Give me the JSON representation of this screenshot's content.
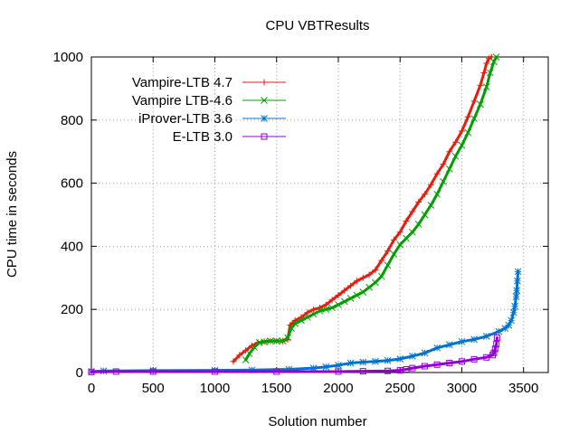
{
  "chart_data": {
    "type": "line",
    "title": "CPU VBTResults",
    "xlabel": "Solution number",
    "ylabel": "CPU time in seconds",
    "xlim": [
      0,
      3700
    ],
    "ylim": [
      0,
      1000
    ],
    "xticks": [
      0,
      500,
      1000,
      1500,
      2000,
      2500,
      3000,
      3500
    ],
    "yticks": [
      0,
      200,
      400,
      600,
      800,
      1000
    ],
    "grid": true,
    "legend_position": "top-left",
    "series": [
      {
        "name": "Vampire-LTB 4.7",
        "color": "#e51e10",
        "marker": "plus",
        "x": [
          1150,
          1200,
          1250,
          1300,
          1350,
          1400,
          1450,
          1500,
          1550,
          1590,
          1610,
          1650,
          1700,
          1750,
          1800,
          1850,
          1900,
          1950,
          2000,
          2050,
          2100,
          2150,
          2200,
          2250,
          2300,
          2350,
          2400,
          2450,
          2500,
          2550,
          2600,
          2650,
          2700,
          2750,
          2800,
          2850,
          2900,
          2950,
          3000,
          3050,
          3100,
          3150,
          3180,
          3200,
          3220,
          3240
        ],
        "y": [
          35,
          55,
          70,
          85,
          95,
          98,
          100,
          100,
          100,
          105,
          150,
          165,
          175,
          190,
          200,
          205,
          215,
          230,
          245,
          260,
          275,
          290,
          300,
          310,
          325,
          355,
          385,
          420,
          445,
          480,
          510,
          540,
          565,
          595,
          630,
          660,
          700,
          730,
          765,
          810,
          860,
          910,
          950,
          980,
          995,
          1000
        ]
      },
      {
        "name": "Vampire LTB-4.6",
        "color": "#00a000",
        "marker": "x",
        "x": [
          1250,
          1280,
          1320,
          1360,
          1400,
          1450,
          1500,
          1550,
          1590,
          1620,
          1650,
          1700,
          1750,
          1800,
          1850,
          1900,
          1950,
          2000,
          2050,
          2100,
          2150,
          2200,
          2250,
          2300,
          2350,
          2400,
          2450,
          2500,
          2550,
          2600,
          2650,
          2700,
          2750,
          2800,
          2850,
          2900,
          2950,
          3000,
          3050,
          3100,
          3150,
          3200,
          3230,
          3260,
          3280
        ],
        "y": [
          40,
          60,
          80,
          95,
          97,
          100,
          100,
          100,
          110,
          140,
          155,
          165,
          175,
          185,
          195,
          200,
          205,
          215,
          225,
          235,
          245,
          255,
          270,
          285,
          305,
          340,
          375,
          405,
          425,
          445,
          470,
          500,
          530,
          565,
          605,
          645,
          685,
          720,
          760,
          805,
          850,
          905,
          950,
          985,
          1000
        ]
      },
      {
        "name": "iProver-LTB 3.6",
        "color": "#0072d0",
        "marker": "star",
        "x": [
          0,
          100,
          500,
          1000,
          1300,
          1600,
          1800,
          1900,
          2000,
          2100,
          2200,
          2300,
          2400,
          2500,
          2600,
          2700,
          2800,
          2900,
          3000,
          3100,
          3200,
          3300,
          3350,
          3380,
          3400,
          3420,
          3430,
          3440,
          3445,
          3450,
          3455
        ],
        "y": [
          3,
          5,
          6,
          7,
          8,
          10,
          14,
          18,
          23,
          30,
          33,
          35,
          38,
          43,
          52,
          62,
          78,
          88,
          98,
          105,
          115,
          130,
          140,
          150,
          165,
          190,
          210,
          240,
          260,
          290,
          320
        ]
      },
      {
        "name": "E-LTB 3.0",
        "color": "#9400d3",
        "marker": "square",
        "x": [
          0,
          200,
          500,
          1000,
          1500,
          2000,
          2200,
          2400,
          2500,
          2550,
          2600,
          2700,
          2800,
          2900,
          3000,
          3100,
          3200,
          3250,
          3260,
          3270,
          3280,
          3285
        ],
        "y": [
          2,
          3,
          3,
          3,
          3,
          3,
          4,
          5,
          7,
          10,
          14,
          20,
          25,
          30,
          35,
          42,
          48,
          55,
          62,
          75,
          90,
          110
        ]
      }
    ]
  }
}
